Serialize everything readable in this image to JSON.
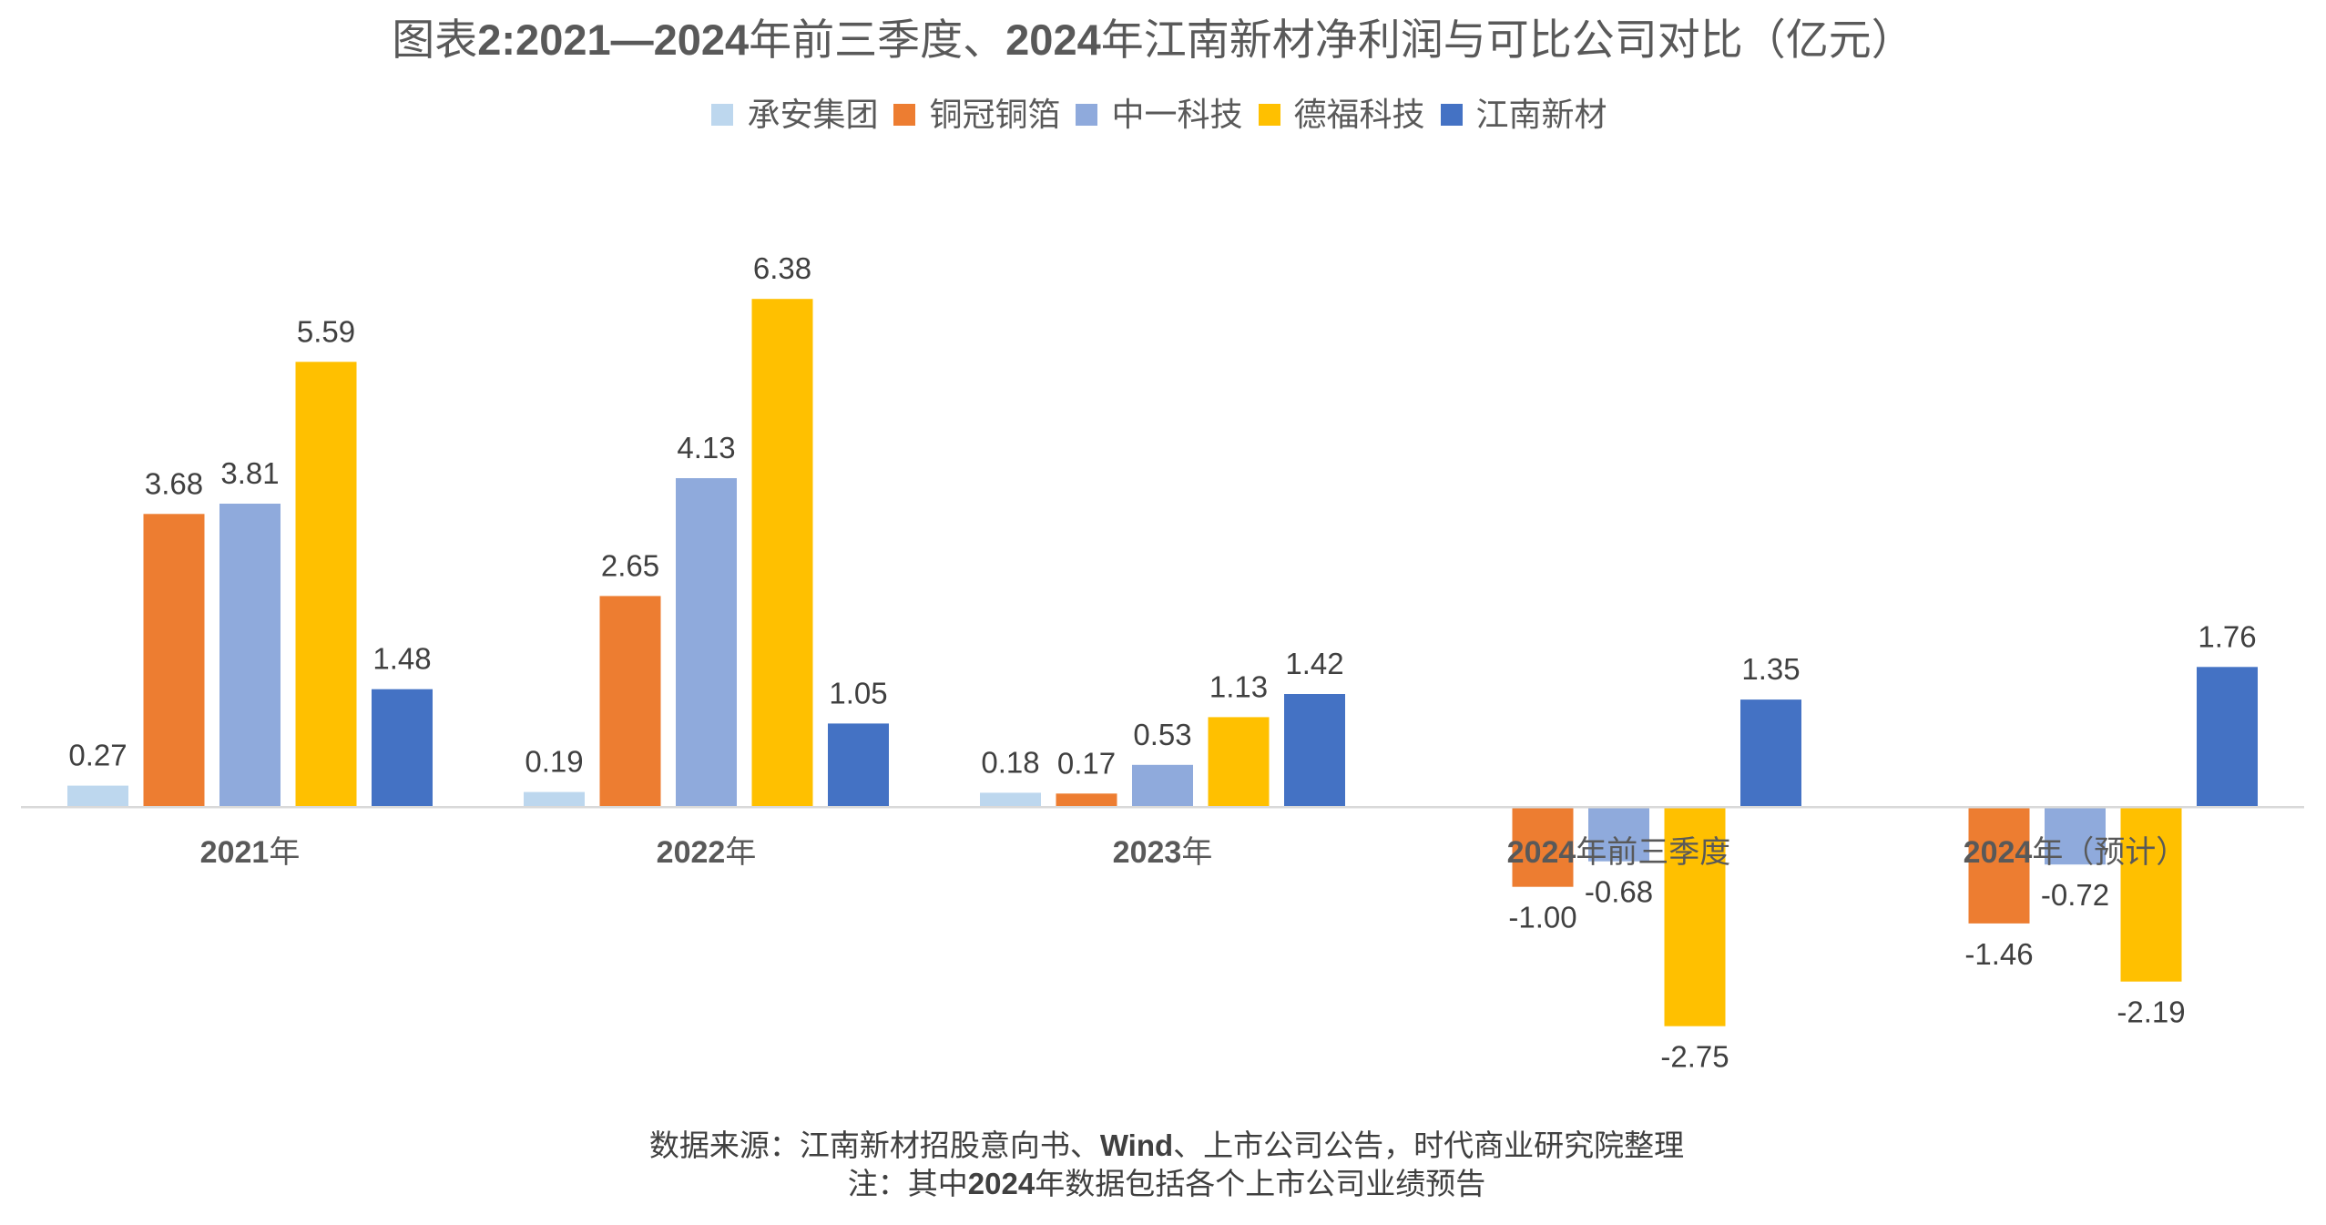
{
  "chart_data": {
    "type": "bar",
    "title": "图表2:2021—2024年前三季度、2024年江南新材净利润与可比公司对比（亿元）",
    "xlabel": "",
    "ylabel": "",
    "categories": [
      "2021年",
      "2022年",
      "2023年",
      "2024年前三季度",
      "2024年（预计）"
    ],
    "series": [
      {
        "name": "承安集团",
        "color": "#BDD7EE",
        "values": [
          0.27,
          0.19,
          0.18,
          null,
          null
        ],
        "labels": [
          "0.27",
          "0.19",
          "0.18",
          null,
          null
        ]
      },
      {
        "name": "铜冠铜箔",
        "color": "#ED7D31",
        "values": [
          3.68,
          2.65,
          0.17,
          -1.0,
          -1.46
        ],
        "labels": [
          "3.68",
          "2.65",
          "0.17",
          "-1.00",
          "-1.46"
        ]
      },
      {
        "name": "中一科技",
        "color": "#8FAADC",
        "values": [
          3.81,
          4.13,
          0.53,
          -0.68,
          -0.72
        ],
        "labels": [
          "3.81",
          "4.13",
          "0.53",
          "-0.68",
          "-0.72"
        ]
      },
      {
        "name": "德福科技",
        "color": "#FFC000",
        "values": [
          5.59,
          6.38,
          1.13,
          -2.75,
          -2.19
        ],
        "labels": [
          "5.59",
          "6.38",
          "1.13",
          "-2.75",
          "-2.19"
        ]
      },
      {
        "name": "江南新材",
        "color": "#4472C4",
        "values": [
          1.48,
          1.05,
          1.42,
          1.35,
          1.76
        ],
        "labels": [
          "1.48",
          "1.05",
          "1.42",
          "1.35",
          "1.76"
        ]
      }
    ],
    "ylim": [
      -4,
      7
    ],
    "y_axis_visible": false,
    "grid": false,
    "legend": "top-center",
    "data_labels": true
  },
  "footer": {
    "source": "数据来源：江南新材招股意向书、Wind、上市公司公告，时代商业研究院整理",
    "note": "注：其中2024年数据包括各个上市公司业绩预告"
  }
}
